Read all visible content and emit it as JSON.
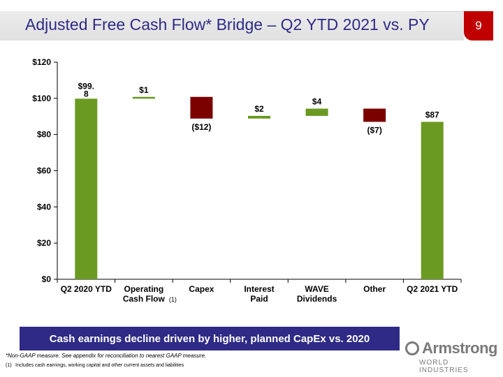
{
  "header": {
    "title": "Adjusted Free Cash Flow* Bridge – Q2 YTD 2021 vs. PY",
    "page_number": "9"
  },
  "chart_data": {
    "type": "bar",
    "subtype": "waterfall",
    "categories": [
      {
        "line1": "Q2 2020 YTD",
        "line2": "",
        "note": ""
      },
      {
        "line1": "Operating",
        "line2": "Cash Flow",
        "note": "(1)"
      },
      {
        "line1": "Capex",
        "line2": "",
        "note": ""
      },
      {
        "line1": "Interest",
        "line2": "Paid",
        "note": ""
      },
      {
        "line1": "WAVE",
        "line2": "Dividends",
        "note": ""
      },
      {
        "line1": "Other",
        "line2": "",
        "note": ""
      },
      {
        "line1": "Q2 2021 YTD",
        "line2": "",
        "note": ""
      }
    ],
    "bars": [
      {
        "start": 0,
        "end": 99.8,
        "kind": "total",
        "label": "$99.8"
      },
      {
        "start": 99.8,
        "end": 100.8,
        "kind": "increase",
        "label": "$1"
      },
      {
        "start": 100.8,
        "end": 88.8,
        "kind": "decrease",
        "label": "($12)"
      },
      {
        "start": 88.8,
        "end": 90.3,
        "kind": "increase",
        "label": "$2"
      },
      {
        "start": 90.3,
        "end": 94.3,
        "kind": "increase",
        "label": "$4"
      },
      {
        "start": 94.3,
        "end": 87.0,
        "kind": "decrease",
        "label": "($7)"
      },
      {
        "start": 0,
        "end": 87.0,
        "kind": "total",
        "label": "$87"
      }
    ],
    "y_ticks": [
      {
        "value": 0,
        "label": "$0"
      },
      {
        "value": 20,
        "label": "$20"
      },
      {
        "value": 40,
        "label": "$40"
      },
      {
        "value": 60,
        "label": "$60"
      },
      {
        "value": 80,
        "label": "$80"
      },
      {
        "value": 100,
        "label": "$100"
      },
      {
        "value": 120,
        "label": "$120"
      }
    ],
    "ylim": [
      0,
      120
    ],
    "grid": false,
    "colors": {
      "total": "#6b9a23",
      "increase": "#6b9a23",
      "decrease": "#7b0000"
    }
  },
  "callout": "Cash earnings decline driven by higher, planned CapEx vs. 2020",
  "notes": {
    "non_gaap": "*Non-GAAP measure. See appendix for reconciliation to nearest GAAP measure.",
    "footnote_number": "(1)",
    "footnote_text": "Includes cash earnings, working capital and other current assets and liabilities"
  },
  "logo": {
    "icon": "armstrong-a-mark-icon",
    "word": "Armstrong",
    "sub": "WORLD INDUSTRIES"
  }
}
